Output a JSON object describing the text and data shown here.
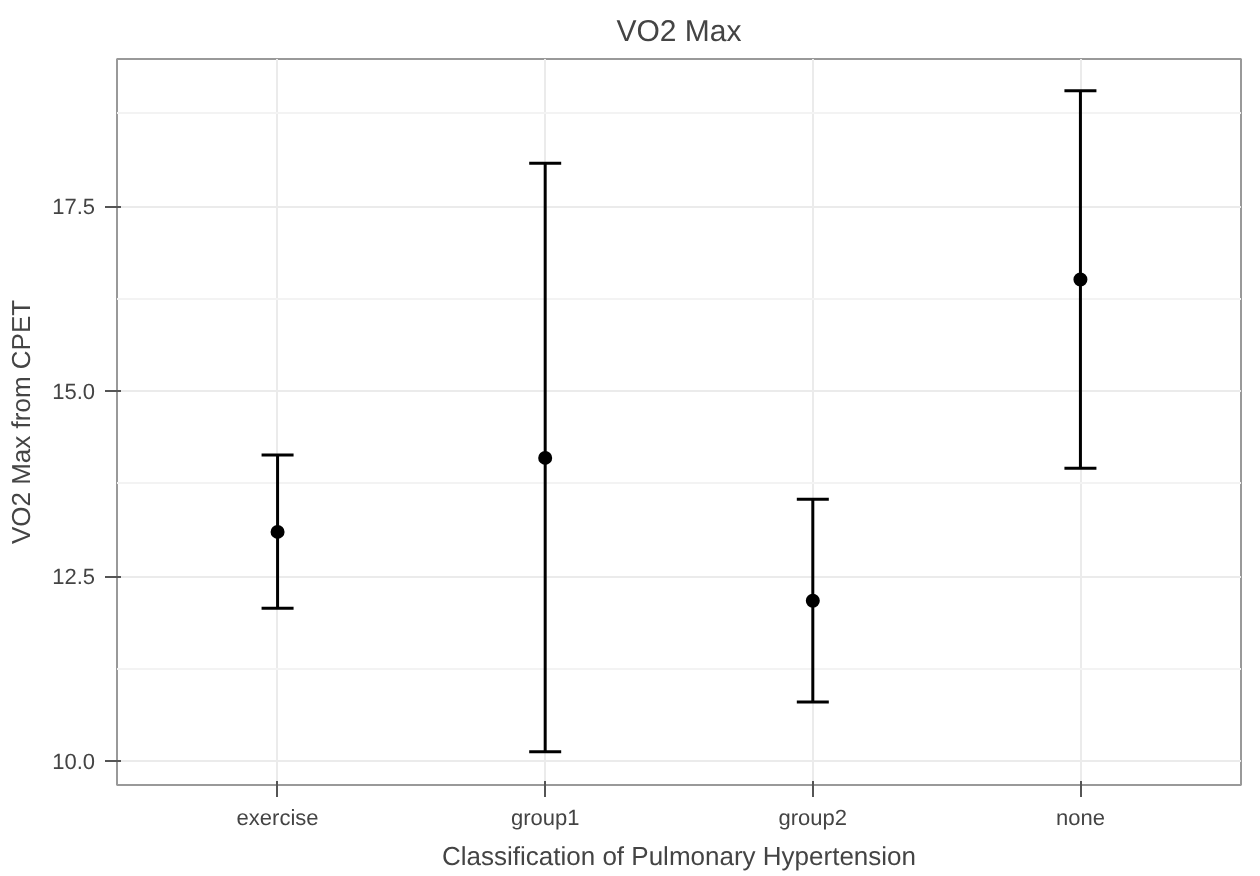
{
  "chart_data": {
    "type": "scatter",
    "title": "VO2 Max",
    "xlabel": "Classification of Pulmonary Hypertension",
    "ylabel": "VO2 Max from CPET",
    "categories": [
      "exercise",
      "group1",
      "group2",
      "none"
    ],
    "series": [
      {
        "color": "#000000",
        "values": [
          13.1,
          14.1,
          12.17,
          16.51
        ],
        "errors": [
          [
            12.07,
            14.14
          ],
          [
            10.13,
            18.08
          ],
          [
            10.8,
            13.54
          ],
          [
            13.96,
            19.06
          ]
        ]
      }
    ],
    "ylim": [
      9.68,
      19.49
    ],
    "yticks": [
      {
        "value": 10,
        "label": "10.0"
      },
      {
        "value": 12.5,
        "label": "12.5"
      },
      {
        "value": 15,
        "label": "15.0"
      },
      {
        "value": 17.5,
        "label": "17.5"
      }
    ],
    "grid": true,
    "marker": "circle"
  }
}
